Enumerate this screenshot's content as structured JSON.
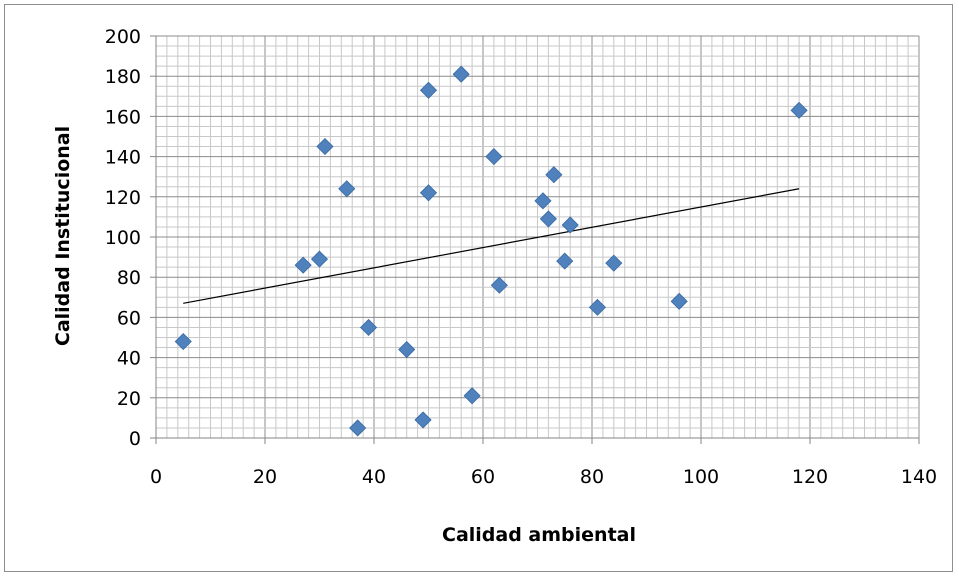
{
  "chart_data": {
    "type": "scatter",
    "title": "",
    "xlabel": "Calidad ambiental",
    "ylabel": "Calidad Institucional",
    "xlim": [
      0,
      140
    ],
    "ylim": [
      0,
      200
    ],
    "x_ticks": [
      "0",
      "20",
      "40",
      "60",
      "80",
      "100",
      "120",
      "140"
    ],
    "y_ticks": [
      "0",
      "20",
      "40",
      "60",
      "80",
      "100",
      "120",
      "140",
      "160",
      "180",
      "200"
    ],
    "grid": true,
    "legend": "none",
    "marker": "diamond",
    "marker_color": "#4f81bd",
    "trendline": {
      "type": "linear",
      "x": [
        5,
        118
      ],
      "y": [
        67,
        124
      ],
      "color": "#000000"
    },
    "series": [
      {
        "points": [
          {
            "x": 5,
            "y": 48
          },
          {
            "x": 27,
            "y": 86
          },
          {
            "x": 30,
            "y": 89
          },
          {
            "x": 31,
            "y": 145
          },
          {
            "x": 35,
            "y": 124
          },
          {
            "x": 37,
            "y": 5
          },
          {
            "x": 39,
            "y": 55
          },
          {
            "x": 46,
            "y": 44
          },
          {
            "x": 49,
            "y": 9
          },
          {
            "x": 50,
            "y": 173
          },
          {
            "x": 50,
            "y": 122
          },
          {
            "x": 56,
            "y": 181
          },
          {
            "x": 58,
            "y": 21
          },
          {
            "x": 62,
            "y": 140
          },
          {
            "x": 63,
            "y": 76
          },
          {
            "x": 71,
            "y": 118
          },
          {
            "x": 72,
            "y": 109
          },
          {
            "x": 73,
            "y": 131
          },
          {
            "x": 75,
            "y": 88
          },
          {
            "x": 76,
            "y": 106
          },
          {
            "x": 81,
            "y": 65
          },
          {
            "x": 84,
            "y": 87
          },
          {
            "x": 96,
            "y": 68
          },
          {
            "x": 118,
            "y": 163
          }
        ]
      }
    ]
  }
}
